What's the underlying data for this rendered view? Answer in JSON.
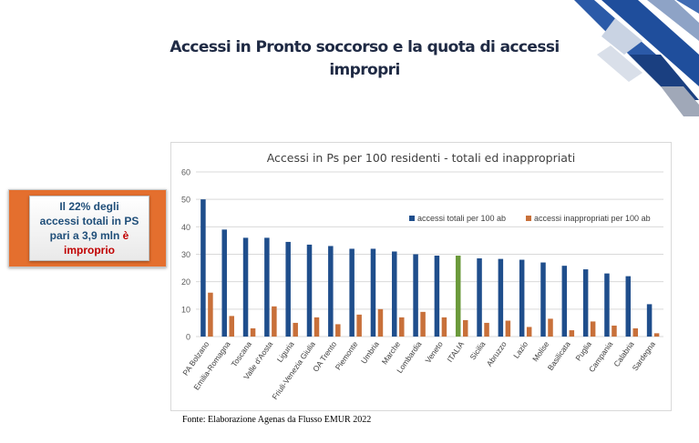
{
  "slide": {
    "title_line1": "Accessi in Pronto soccorso e la quota di accessi",
    "title_line2": "impropri",
    "source": "Fonte: Elaborazione Agenas da Flusso EMUR 2022"
  },
  "callout": {
    "line1": "Il 22% degli",
    "line2": "accessi totali in PS",
    "line3_a": "pari a 3,9 mln ",
    "line3_b": "è",
    "line4": "improprio"
  },
  "colors": {
    "total_bar": "#1f4e8c",
    "inappropriate_bar": "#c8703a",
    "italia_bar": "#6b9a3b",
    "callout_orange": "#e46f2e",
    "callout_text": "#1f4e79",
    "callout_highlight": "#c00000"
  },
  "chart_data": {
    "type": "bar",
    "title": "Accessi in Ps per 100 residenti - totali ed inappropriati",
    "categories": [
      "PA Bolzano",
      "Emilia-Romagna",
      "Toscana",
      "Valle d'Aosta",
      "Liguria",
      "Friuli-Venezia Giulia",
      "OA Trento",
      "Piemonte",
      "Umbria",
      "Marche",
      "Lombardia",
      "Veneto",
      "ITALIA",
      "Sicilia",
      "Abruzzo",
      "Lazio",
      "Molise",
      "Basilicata",
      "Puglia",
      "Campania",
      "Calabria",
      "Sardegna"
    ],
    "series": [
      {
        "name": "accessi totali per 100 ab",
        "values": [
          50,
          39,
          36,
          36,
          34.5,
          33.5,
          33,
          32,
          32,
          31,
          30,
          29.5,
          29.5,
          28.5,
          28.3,
          28,
          27,
          25.8,
          24.5,
          23,
          22,
          11.8
        ]
      },
      {
        "name": "accessi inappropriati per 100 ab",
        "values": [
          16,
          7.5,
          3,
          11,
          5,
          7,
          4.5,
          8,
          10,
          7,
          9,
          7,
          6,
          5,
          5.8,
          3.5,
          6.5,
          2.3,
          5.5,
          4,
          3,
          1.2
        ]
      }
    ],
    "highlight_category": "ITALIA",
    "yticks": [
      0,
      10,
      20,
      30,
      40,
      50,
      60
    ],
    "ylim": [
      0,
      60
    ],
    "legend_position": "top-right",
    "grid": true
  }
}
